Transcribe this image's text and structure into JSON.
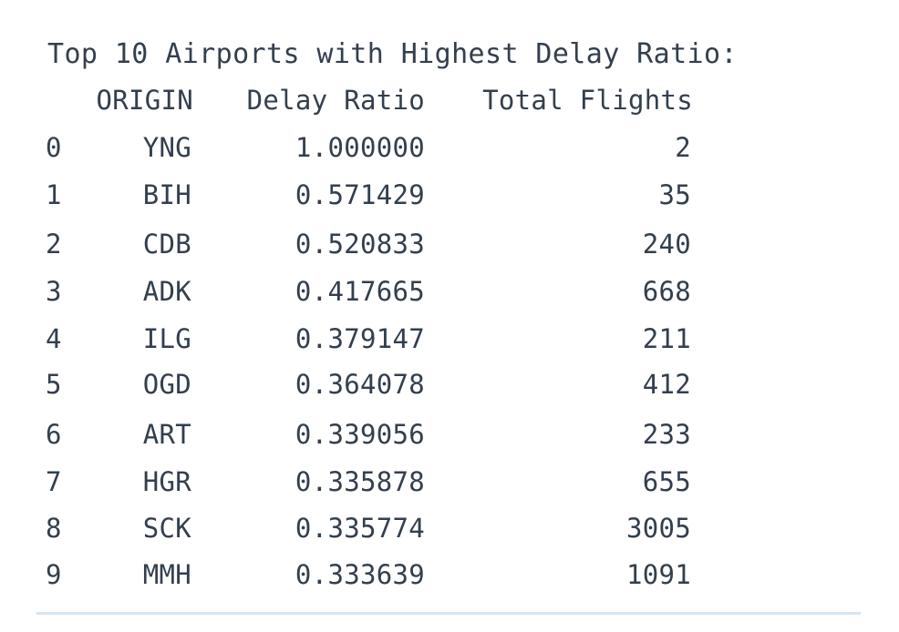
{
  "output": {
    "heading": "Top 10 Airports with Highest Delay Ratio:",
    "columns": {
      "origin": "ORIGIN",
      "ratio": "Delay Ratio",
      "flights": "Total Flights"
    },
    "rows": [
      {
        "index": "0",
        "origin": "YNG",
        "ratio": "1.000000",
        "flights": "2"
      },
      {
        "index": "1",
        "origin": "BIH",
        "ratio": "0.571429",
        "flights": "35"
      },
      {
        "index": "2",
        "origin": "CDB",
        "ratio": "0.520833",
        "flights": "240"
      },
      {
        "index": "3",
        "origin": "ADK",
        "ratio": "0.417665",
        "flights": "668"
      },
      {
        "index": "4",
        "origin": "ILG",
        "ratio": "0.379147",
        "flights": "211"
      },
      {
        "index": "5",
        "origin": "OGD",
        "ratio": "0.364078",
        "flights": "412"
      },
      {
        "index": "6",
        "origin": "ART",
        "ratio": "0.339056",
        "flights": "233"
      },
      {
        "index": "7",
        "origin": "HGR",
        "ratio": "0.335878",
        "flights": "655"
      },
      {
        "index": "8",
        "origin": "SCK",
        "ratio": "0.335774",
        "flights": "3005"
      },
      {
        "index": "9",
        "origin": "MMH",
        "ratio": "0.333639",
        "flights": "1091"
      }
    ]
  }
}
